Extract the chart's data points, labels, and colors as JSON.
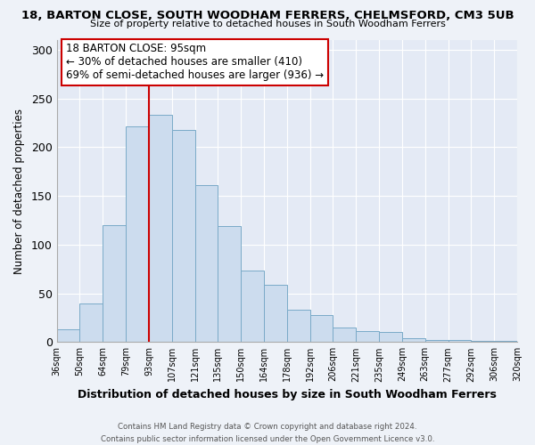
{
  "title1": "18, BARTON CLOSE, SOUTH WOODHAM FERRERS, CHELMSFORD, CM3 5UB",
  "title2": "Size of property relative to detached houses in South Woodham Ferrers",
  "xlabel": "Distribution of detached houses by size in South Woodham Ferrers",
  "ylabel": "Number of detached properties",
  "categories": [
    "36sqm",
    "50sqm",
    "64sqm",
    "79sqm",
    "93sqm",
    "107sqm",
    "121sqm",
    "135sqm",
    "150sqm",
    "164sqm",
    "178sqm",
    "192sqm",
    "206sqm",
    "221sqm",
    "235sqm",
    "249sqm",
    "263sqm",
    "277sqm",
    "292sqm",
    "306sqm",
    "320sqm"
  ],
  "values": [
    13,
    40,
    120,
    221,
    233,
    218,
    161,
    119,
    73,
    59,
    33,
    28,
    15,
    11,
    10,
    4,
    2,
    2,
    1,
    1
  ],
  "bar_color": "#ccdcee",
  "bar_edge_color": "#7aaac8",
  "vline_x_idx": 4,
  "vline_color": "#cc0000",
  "annotation_title": "18 BARTON CLOSE: 95sqm",
  "annotation_line1": "← 30% of detached houses are smaller (410)",
  "annotation_line2": "69% of semi-detached houses are larger (936) →",
  "annotation_box_color": "#ffffff",
  "annotation_box_edge": "#cc0000",
  "ylim": [
    0,
    310
  ],
  "yticks": [
    0,
    50,
    100,
    150,
    200,
    250,
    300
  ],
  "footer1": "Contains HM Land Registry data © Crown copyright and database right 2024.",
  "footer2": "Contains public sector information licensed under the Open Government Licence v3.0.",
  "bg_color": "#eef2f8",
  "plot_bg_color": "#e4eaf5",
  "grid_color": "#ffffff"
}
